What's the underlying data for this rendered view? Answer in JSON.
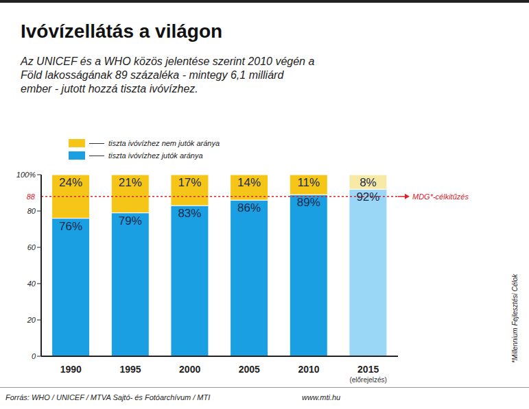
{
  "chart_data": {
    "type": "bar",
    "title": "Ivóvízellátás a világon",
    "subtitle": "Az UNICEF és a WHO közös jelentése szerint 2010 végén a Föld lakosságának 89 százaléka - mintegy 6,1 milliárd ember - jutott hozzá tiszta ivóvízhez.",
    "categories": [
      "1990",
      "1995",
      "2000",
      "2005",
      "2010",
      "2015"
    ],
    "annotations": [
      {
        "category": "2015",
        "text": "(előrejelzés)"
      }
    ],
    "series": [
      {
        "name": "tiszta ivóvízhez jutók aránya",
        "color": "#1a9fe3",
        "colors": [
          "#1a9fe3",
          "#1a9fe3",
          "#1a9fe3",
          "#1a9fe3",
          "#1a9fe3",
          "#9ad6f5"
        ],
        "values": [
          76,
          79,
          83,
          86,
          89,
          92
        ],
        "value_labels": [
          "76%",
          "79%",
          "83%",
          "86%",
          "89%",
          "92%"
        ]
      },
      {
        "name": "tiszta ivóvízhez nem jutók aránya",
        "color": "#f5c518",
        "colors": [
          "#f5c518",
          "#f5c518",
          "#f5c518",
          "#f5c518",
          "#f5c518",
          "#f7eaa6"
        ],
        "values": [
          24,
          21,
          17,
          14,
          11,
          8
        ],
        "value_labels": [
          "24%",
          "21%",
          "17%",
          "14%",
          "11%",
          "8%"
        ]
      }
    ],
    "stacked": true,
    "data_labels": true,
    "ylim": [
      0,
      100
    ],
    "yticks": [
      0,
      20,
      40,
      60,
      80,
      {
        "value": 100,
        "label": "100%"
      }
    ],
    "grid": false,
    "legend": "top-left",
    "reference_line": {
      "value": 88,
      "label": "MDG*-célkitűzés",
      "color": "#e0202a"
    },
    "footnote": "*Millennium Fejlesztési Célok",
    "source": "Forrás: WHO / UNICEF / MTVA Sajtó- és Fotóarchívum / MTI",
    "source_url": "www.mti.hu"
  }
}
